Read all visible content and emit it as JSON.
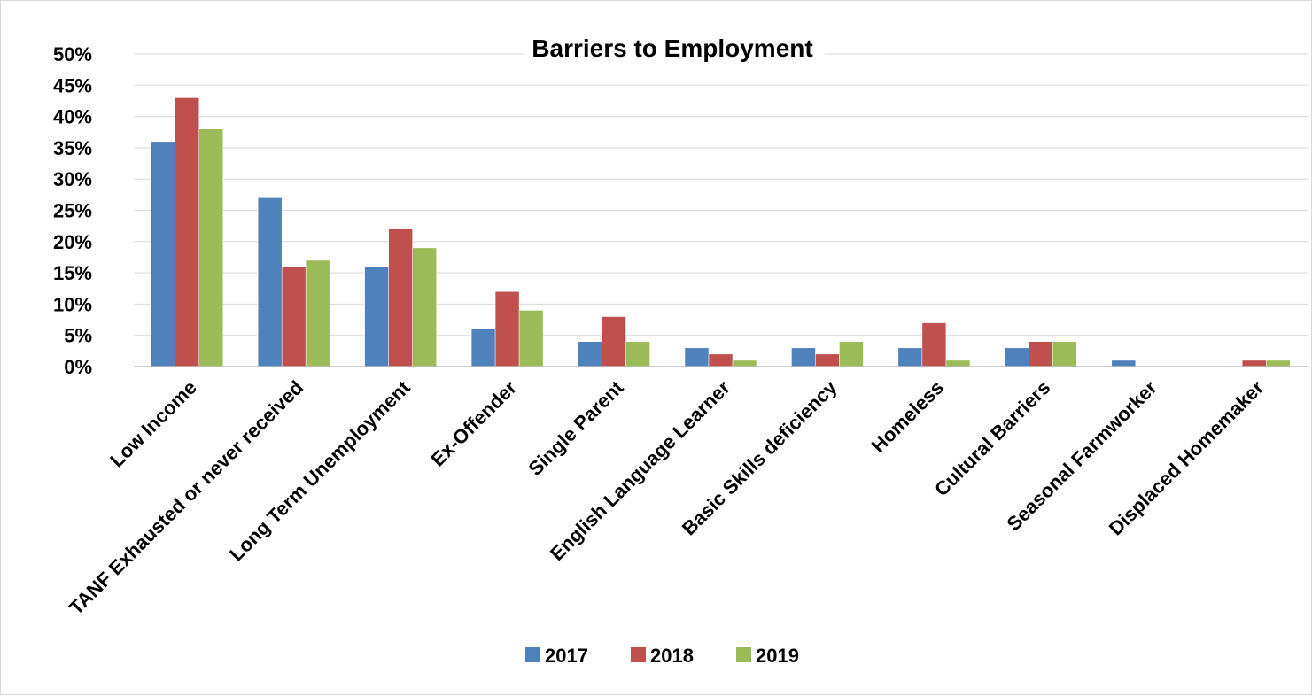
{
  "chart_data": {
    "type": "bar",
    "title": "Barriers to Employment",
    "xlabel": "",
    "ylabel": "",
    "ylim": [
      0,
      50
    ],
    "y_tick_labels": [
      "0%",
      "5%",
      "10%",
      "15%",
      "20%",
      "25%",
      "30%",
      "35%",
      "40%",
      "45%",
      "50%"
    ],
    "y_ticks": [
      0,
      5,
      10,
      15,
      20,
      25,
      30,
      35,
      40,
      45,
      50
    ],
    "grid": true,
    "legend_position": "bottom",
    "categories": [
      "Low Income",
      "TANF Exhausted or never received",
      "Long Term Unemployment",
      "Ex-Offender",
      "Single Parent",
      "English Language Learner",
      "Basic Skills deficiency",
      "Homeless",
      "Cultural Barriers",
      "Seasonal Farmworker",
      "Displaced Homemaker"
    ],
    "series": [
      {
        "name": "2017",
        "color": "#4f81bd",
        "values": [
          36,
          27,
          16,
          6,
          4,
          3,
          3,
          3,
          3,
          1,
          0
        ]
      },
      {
        "name": "2018",
        "color": "#c0504d",
        "values": [
          43,
          16,
          22,
          12,
          8,
          2,
          2,
          7,
          4,
          0,
          1
        ]
      },
      {
        "name": "2019",
        "color": "#9bbb59",
        "values": [
          38,
          17,
          19,
          9,
          4,
          1,
          4,
          1,
          4,
          0,
          1
        ]
      }
    ]
  }
}
